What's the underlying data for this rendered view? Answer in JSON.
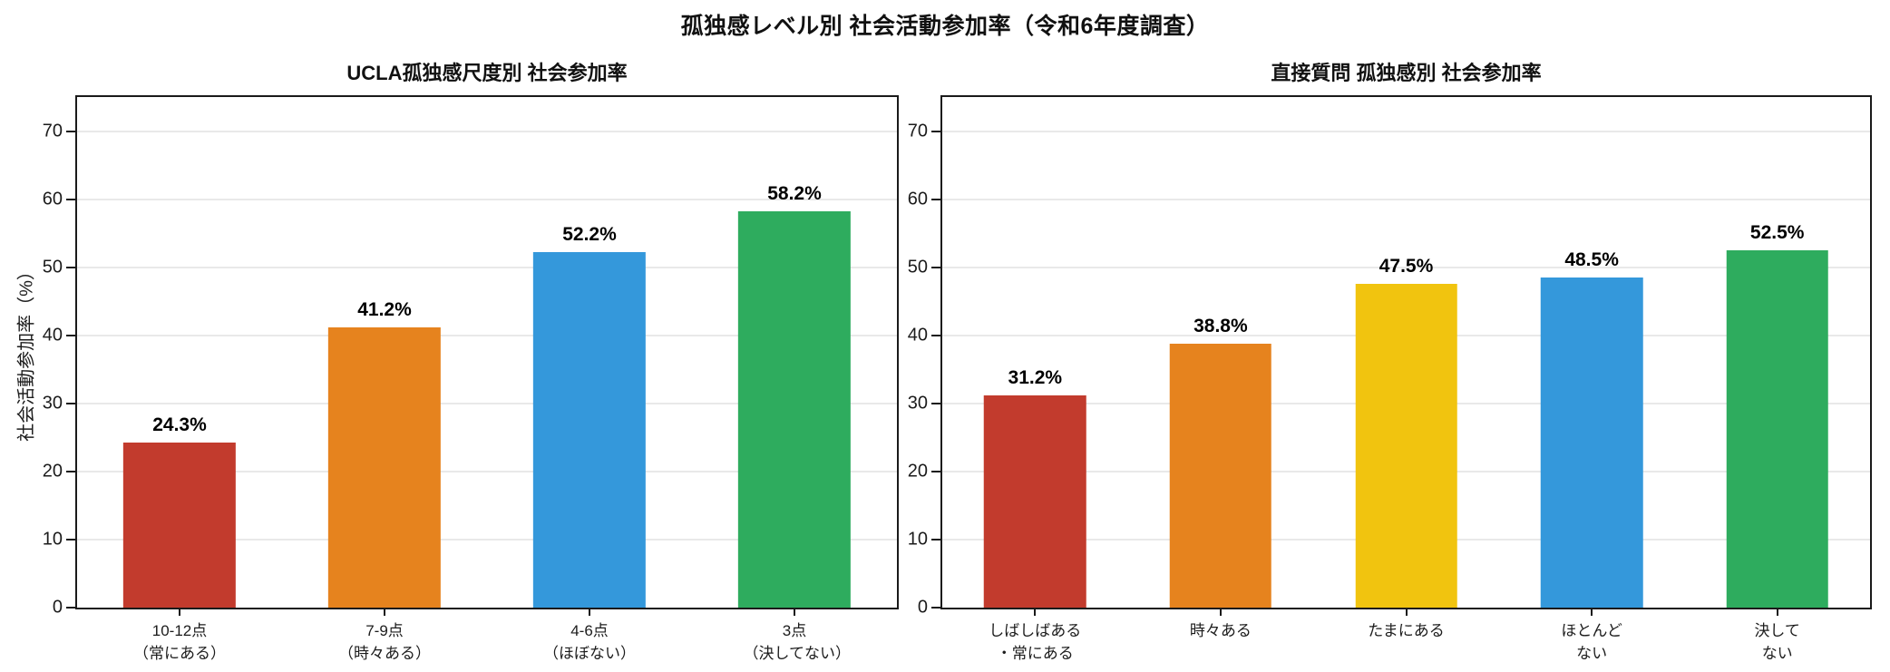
{
  "figure_title": "孤独感レベル別 社会活動参加率（令和6年度調査）",
  "palette": {
    "red": "#c23b2d",
    "orange": "#e6831e",
    "yellow": "#f1c40f",
    "blue": "#3498db",
    "green": "#2eac5e",
    "spine": "#1a1a1a",
    "grid": "#e9e9e9"
  },
  "chart_data": [
    {
      "type": "bar",
      "title": "UCLA孤独感尺度別 社会参加率",
      "categories": [
        "10-12点\n（常にある）",
        "7-9点\n（時々ある）",
        "4-6点\n（ほぼない）",
        "3点\n（決してない）"
      ],
      "values": [
        24.3,
        41.2,
        52.2,
        58.2
      ],
      "value_labels": [
        "24.3%",
        "41.2%",
        "52.2%",
        "58.2%"
      ],
      "bar_colors": [
        "#c23b2d",
        "#e6831e",
        "#3498db",
        "#2eac5e"
      ],
      "xlabel": "",
      "ylabel": "社会活動参加率（%）",
      "yticks": [
        0,
        10,
        20,
        30,
        40,
        50,
        60,
        70
      ],
      "ylim": [
        0,
        75
      ],
      "grid": true,
      "legend_position": "none"
    },
    {
      "type": "bar",
      "title": "直接質問 孤独感別 社会参加率",
      "categories": [
        "しばしばある\n・常にある",
        "時々ある",
        "たまにある",
        "ほとんど\nない",
        "決して\nない"
      ],
      "values": [
        31.2,
        38.8,
        47.5,
        48.5,
        52.5
      ],
      "value_labels": [
        "31.2%",
        "38.8%",
        "47.5%",
        "48.5%",
        "52.5%"
      ],
      "bar_colors": [
        "#c23b2d",
        "#e6831e",
        "#f1c40f",
        "#3498db",
        "#2eac5e"
      ],
      "xlabel": "",
      "ylabel": "",
      "yticks": [
        0,
        10,
        20,
        30,
        40,
        50,
        60,
        70
      ],
      "ylim": [
        0,
        75
      ],
      "grid": true,
      "legend_position": "none"
    }
  ]
}
